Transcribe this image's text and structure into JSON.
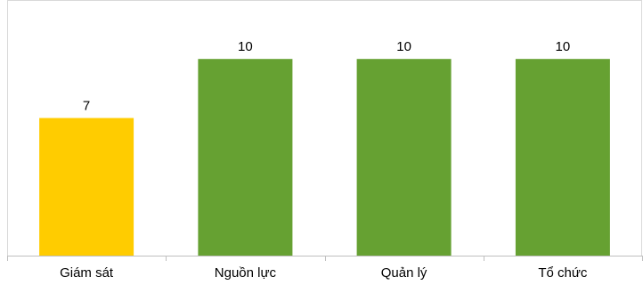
{
  "chart_data": {
    "type": "bar",
    "categories": [
      "Giám sát",
      "Nguồn lực",
      "Quản lý",
      "Tổ chức"
    ],
    "values": [
      7,
      10,
      10,
      10
    ],
    "data_labels": [
      "7",
      "10",
      "10",
      "10"
    ],
    "bar_colors": [
      "#ffcc00",
      "#66a132",
      "#66a132",
      "#66a132"
    ],
    "ylim": [
      0,
      13
    ],
    "title": "",
    "xlabel": "",
    "ylabel": "",
    "grid": false,
    "legend": "none"
  }
}
